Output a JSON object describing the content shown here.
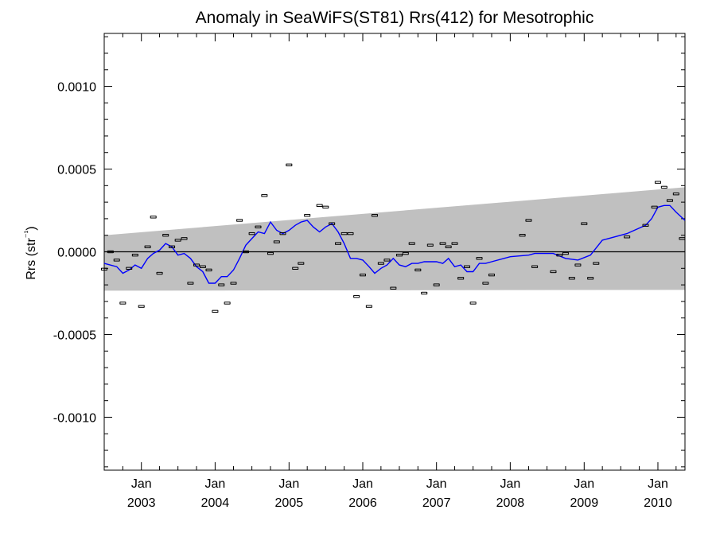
{
  "chart_data": {
    "type": "scatter",
    "title": "Anomaly in SeaWiFS(ST81) Rrs(412) for Mesotrophic",
    "ylabel": "Rrs (str⁻¹)",
    "xlabel": "",
    "xlim": [
      "2002-07-01",
      "2010-05-15"
    ],
    "ylim": [
      -0.00132,
      0.00132
    ],
    "yticks": [
      {
        "value": 0.001,
        "label": "0.0010"
      },
      {
        "value": 0.0005,
        "label": "0.0005"
      },
      {
        "value": 0.0,
        "label": "0.0000"
      },
      {
        "value": -0.0005,
        "label": "-0.0005"
      },
      {
        "value": -0.001,
        "label": "-0.0010"
      }
    ],
    "xticks": [
      {
        "date": "2003-01-01",
        "month": "Jan",
        "year": "2003"
      },
      {
        "date": "2004-01-01",
        "month": "Jan",
        "year": "2004"
      },
      {
        "date": "2005-01-01",
        "month": "Jan",
        "year": "2005"
      },
      {
        "date": "2006-01-01",
        "month": "Jan",
        "year": "2006"
      },
      {
        "date": "2007-01-01",
        "month": "Jan",
        "year": "2007"
      },
      {
        "date": "2008-01-01",
        "month": "Jan",
        "year": "2008"
      },
      {
        "date": "2009-01-01",
        "month": "Jan",
        "year": "2009"
      },
      {
        "date": "2010-01-01",
        "month": "Jan",
        "year": "2010"
      }
    ],
    "grid": false,
    "zero_line": 0.0,
    "trend_band": {
      "color": "#c0c0c0",
      "upper": [
        {
          "x": "2002-07-01",
          "y": 0.0001
        },
        {
          "x": "2010-05-15",
          "y": 0.00039
        }
      ],
      "lower": [
        {
          "x": "2002-07-01",
          "y": -0.000235
        },
        {
          "x": "2010-05-15",
          "y": -0.00023
        }
      ]
    },
    "series": [
      {
        "kind": "points",
        "color": "#000000",
        "points": [
          {
            "x": "2002-07-01",
            "y": -0.000105
          },
          {
            "x": "2002-08-01",
            "y": 0.0
          },
          {
            "x": "2002-09-01",
            "y": -5e-05
          },
          {
            "x": "2002-10-01",
            "y": -0.00031
          },
          {
            "x": "2002-11-01",
            "y": -0.0001
          },
          {
            "x": "2002-12-01",
            "y": -2e-05
          },
          {
            "x": "2003-01-01",
            "y": -0.00033
          },
          {
            "x": "2003-02-01",
            "y": 3e-05
          },
          {
            "x": "2003-03-01",
            "y": 0.00021
          },
          {
            "x": "2003-04-01",
            "y": -0.00013
          },
          {
            "x": "2003-05-01",
            "y": 0.0001
          },
          {
            "x": "2003-06-01",
            "y": 3e-05
          },
          {
            "x": "2003-07-01",
            "y": 7e-05
          },
          {
            "x": "2003-08-01",
            "y": 8e-05
          },
          {
            "x": "2003-09-01",
            "y": -0.00019
          },
          {
            "x": "2003-10-01",
            "y": -8e-05
          },
          {
            "x": "2003-11-01",
            "y": -9e-05
          },
          {
            "x": "2003-12-01",
            "y": -0.00011
          },
          {
            "x": "2004-01-01",
            "y": -0.00036
          },
          {
            "x": "2004-02-01",
            "y": -0.0002
          },
          {
            "x": "2004-03-01",
            "y": -0.00031
          },
          {
            "x": "2004-04-01",
            "y": -0.00019
          },
          {
            "x": "2004-05-01",
            "y": 0.00019
          },
          {
            "x": "2004-06-01",
            "y": 0.0
          },
          {
            "x": "2004-07-01",
            "y": 0.00011
          },
          {
            "x": "2004-08-01",
            "y": 0.00015
          },
          {
            "x": "2004-09-01",
            "y": 0.00034
          },
          {
            "x": "2004-10-01",
            "y": -1e-05
          },
          {
            "x": "2004-11-01",
            "y": 6e-05
          },
          {
            "x": "2004-12-01",
            "y": 0.00011
          },
          {
            "x": "2005-01-01",
            "y": 0.000525
          },
          {
            "x": "2005-02-01",
            "y": -0.0001
          },
          {
            "x": "2005-03-01",
            "y": -7e-05
          },
          {
            "x": "2005-04-01",
            "y": 0.00022
          },
          {
            "x": "2005-06-01",
            "y": 0.00028
          },
          {
            "x": "2005-07-01",
            "y": 0.00027
          },
          {
            "x": "2005-08-01",
            "y": 0.00017
          },
          {
            "x": "2005-09-01",
            "y": 5e-05
          },
          {
            "x": "2005-10-01",
            "y": 0.00011
          },
          {
            "x": "2005-11-01",
            "y": 0.00011
          },
          {
            "x": "2005-12-01",
            "y": -0.00027
          },
          {
            "x": "2006-01-01",
            "y": -0.00014
          },
          {
            "x": "2006-02-01",
            "y": -0.00033
          },
          {
            "x": "2006-03-01",
            "y": 0.00022
          },
          {
            "x": "2006-04-01",
            "y": -7e-05
          },
          {
            "x": "2006-05-01",
            "y": -5e-05
          },
          {
            "x": "2006-06-01",
            "y": -0.00022
          },
          {
            "x": "2006-07-01",
            "y": -2e-05
          },
          {
            "x": "2006-08-01",
            "y": -1e-05
          },
          {
            "x": "2006-09-01",
            "y": 5e-05
          },
          {
            "x": "2006-10-01",
            "y": -0.00011
          },
          {
            "x": "2006-11-01",
            "y": -0.00025
          },
          {
            "x": "2006-12-01",
            "y": 4e-05
          },
          {
            "x": "2007-01-01",
            "y": -0.0002
          },
          {
            "x": "2007-02-01",
            "y": 5e-05
          },
          {
            "x": "2007-03-01",
            "y": 3e-05
          },
          {
            "x": "2007-04-01",
            "y": 5e-05
          },
          {
            "x": "2007-05-01",
            "y": -0.00016
          },
          {
            "x": "2007-06-01",
            "y": -9e-05
          },
          {
            "x": "2007-07-01",
            "y": -0.00031
          },
          {
            "x": "2007-08-01",
            "y": -4e-05
          },
          {
            "x": "2007-09-01",
            "y": -0.00019
          },
          {
            "x": "2007-10-01",
            "y": -0.00014
          },
          {
            "x": "2008-03-01",
            "y": 0.0001
          },
          {
            "x": "2008-04-01",
            "y": 0.00019
          },
          {
            "x": "2008-05-01",
            "y": -9e-05
          },
          {
            "x": "2008-08-01",
            "y": -0.00012
          },
          {
            "x": "2008-09-01",
            "y": -2e-05
          },
          {
            "x": "2008-10-01",
            "y": -1e-05
          },
          {
            "x": "2008-11-01",
            "y": -0.00016
          },
          {
            "x": "2008-12-01",
            "y": -8e-05
          },
          {
            "x": "2009-01-01",
            "y": 0.00017
          },
          {
            "x": "2009-02-01",
            "y": -0.00016
          },
          {
            "x": "2009-03-01",
            "y": -7e-05
          },
          {
            "x": "2009-08-01",
            "y": 9e-05
          },
          {
            "x": "2009-11-01",
            "y": 0.00016
          },
          {
            "x": "2010-01-01",
            "y": 0.00042
          },
          {
            "x": "2010-02-01",
            "y": 0.00039
          },
          {
            "x": "2010-03-01",
            "y": 0.00031
          },
          {
            "x": "2010-04-01",
            "y": 0.00035
          },
          {
            "x": "2010-05-01",
            "y": 8e-05
          },
          {
            "x": "2009-12-15",
            "y": 0.00027
          }
        ]
      },
      {
        "kind": "line",
        "color": "#0000ff",
        "points": [
          {
            "x": "2002-07-01",
            "y": -7e-05
          },
          {
            "x": "2002-09-01",
            "y": -9e-05
          },
          {
            "x": "2002-10-01",
            "y": -0.00013
          },
          {
            "x": "2002-11-01",
            "y": -0.00011
          },
          {
            "x": "2002-12-01",
            "y": -8e-05
          },
          {
            "x": "2003-01-01",
            "y": -0.0001
          },
          {
            "x": "2003-02-01",
            "y": -4e-05
          },
          {
            "x": "2003-03-01",
            "y": -1e-05
          },
          {
            "x": "2003-04-01",
            "y": 1e-05
          },
          {
            "x": "2003-05-01",
            "y": 5e-05
          },
          {
            "x": "2003-06-01",
            "y": 3e-05
          },
          {
            "x": "2003-07-01",
            "y": -2e-05
          },
          {
            "x": "2003-08-01",
            "y": -1e-05
          },
          {
            "x": "2003-09-01",
            "y": -4e-05
          },
          {
            "x": "2003-10-01",
            "y": -9e-05
          },
          {
            "x": "2003-11-01",
            "y": -0.00012
          },
          {
            "x": "2003-12-01",
            "y": -0.00019
          },
          {
            "x": "2004-01-01",
            "y": -0.00019
          },
          {
            "x": "2004-02-01",
            "y": -0.00015
          },
          {
            "x": "2004-03-01",
            "y": -0.00015
          },
          {
            "x": "2004-04-01",
            "y": -0.00011
          },
          {
            "x": "2004-05-01",
            "y": -4e-05
          },
          {
            "x": "2004-06-01",
            "y": 4e-05
          },
          {
            "x": "2004-07-01",
            "y": 8e-05
          },
          {
            "x": "2004-08-01",
            "y": 0.00012
          },
          {
            "x": "2004-09-01",
            "y": 0.00011
          },
          {
            "x": "2004-10-01",
            "y": 0.00018
          },
          {
            "x": "2004-11-01",
            "y": 0.00013
          },
          {
            "x": "2004-12-01",
            "y": 0.00011
          },
          {
            "x": "2005-01-01",
            "y": 0.00013
          },
          {
            "x": "2005-02-01",
            "y": 0.00016
          },
          {
            "x": "2005-03-01",
            "y": 0.00018
          },
          {
            "x": "2005-04-01",
            "y": 0.00019
          },
          {
            "x": "2005-05-01",
            "y": 0.00015
          },
          {
            "x": "2005-06-01",
            "y": 0.00012
          },
          {
            "x": "2005-07-01",
            "y": 0.00015
          },
          {
            "x": "2005-08-01",
            "y": 0.00017
          },
          {
            "x": "2005-09-01",
            "y": 0.00012
          },
          {
            "x": "2005-10-01",
            "y": 5e-05
          },
          {
            "x": "2005-11-01",
            "y": -4e-05
          },
          {
            "x": "2005-12-01",
            "y": -4e-05
          },
          {
            "x": "2006-01-01",
            "y": -5e-05
          },
          {
            "x": "2006-02-01",
            "y": -9e-05
          },
          {
            "x": "2006-03-01",
            "y": -0.00013
          },
          {
            "x": "2006-04-01",
            "y": -0.0001
          },
          {
            "x": "2006-05-01",
            "y": -8e-05
          },
          {
            "x": "2006-06-01",
            "y": -4e-05
          },
          {
            "x": "2006-07-01",
            "y": -8e-05
          },
          {
            "x": "2006-08-01",
            "y": -9e-05
          },
          {
            "x": "2006-09-01",
            "y": -7e-05
          },
          {
            "x": "2006-10-01",
            "y": -7e-05
          },
          {
            "x": "2006-11-01",
            "y": -6e-05
          },
          {
            "x": "2006-12-01",
            "y": -6e-05
          },
          {
            "x": "2007-01-01",
            "y": -6e-05
          },
          {
            "x": "2007-02-01",
            "y": -7e-05
          },
          {
            "x": "2007-03-01",
            "y": -4e-05
          },
          {
            "x": "2007-04-01",
            "y": -9e-05
          },
          {
            "x": "2007-05-01",
            "y": -8e-05
          },
          {
            "x": "2007-06-01",
            "y": -0.00012
          },
          {
            "x": "2007-07-01",
            "y": -0.00012
          },
          {
            "x": "2007-08-01",
            "y": -7e-05
          },
          {
            "x": "2007-09-01",
            "y": -7e-05
          },
          {
            "x": "2007-10-01",
            "y": -6e-05
          },
          {
            "x": "2008-01-01",
            "y": -3e-05
          },
          {
            "x": "2008-04-01",
            "y": -2e-05
          },
          {
            "x": "2008-05-01",
            "y": -1e-05
          },
          {
            "x": "2008-08-01",
            "y": -1e-05
          },
          {
            "x": "2008-10-01",
            "y": -4e-05
          },
          {
            "x": "2008-12-01",
            "y": -5e-05
          },
          {
            "x": "2009-02-01",
            "y": -2e-05
          },
          {
            "x": "2009-04-01",
            "y": 7e-05
          },
          {
            "x": "2009-08-01",
            "y": 0.00011
          },
          {
            "x": "2009-11-01",
            "y": 0.00016
          },
          {
            "x": "2009-12-01",
            "y": 0.0002
          },
          {
            "x": "2010-01-01",
            "y": 0.00027
          },
          {
            "x": "2010-02-01",
            "y": 0.00028
          },
          {
            "x": "2010-03-01",
            "y": 0.00028
          },
          {
            "x": "2010-04-01",
            "y": 0.00024
          },
          {
            "x": "2010-05-15",
            "y": 0.00019
          }
        ]
      }
    ]
  }
}
